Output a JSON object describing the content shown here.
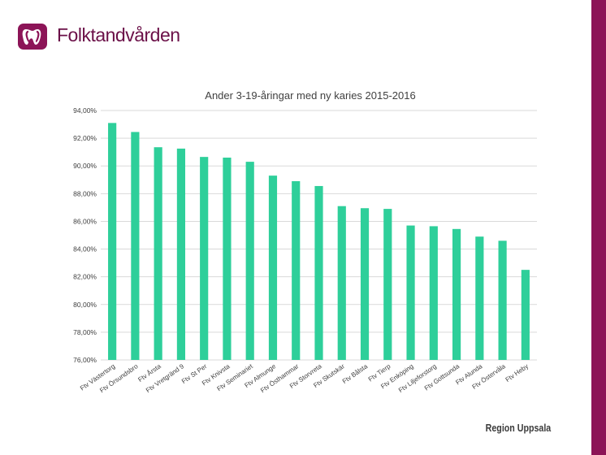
{
  "brand": {
    "name": "Folktandvården",
    "footer": "Region Uppsala",
    "accent_color": "#8c1457",
    "bar_color": "#2ecf9a",
    "logo_icon": "tooth-logo-icon"
  },
  "chart_data": {
    "type": "bar",
    "title": "Ander 3-19-åringar med ny karies 2015-2016",
    "xlabel": "",
    "ylabel": "",
    "ylim": [
      76,
      94
    ],
    "yticks": [
      "76,00%",
      "78,00%",
      "80,00%",
      "82,00%",
      "84,00%",
      "86,00%",
      "88,00%",
      "90,00%",
      "92,00%",
      "94,00%"
    ],
    "grid": true,
    "categories": [
      "Ftv Västertorg",
      "Ftv Örsundsbro",
      "Ftv Årsta",
      "Ftv Vretgränd 9",
      "Ftv St Per",
      "Ftv Knivsta",
      "Ftv Seminariet",
      "Ftv Almunge",
      "Ftv Östhammar",
      "Ftv Storvreta",
      "Ftv Skutskär",
      "Ftv Bålsta",
      "Ftv Tierp",
      "Ftv Enköping",
      "Ftv Liljeforstorg",
      "Ftv Gottsunda",
      "Ftv Alunda",
      "Ftv Östervåla",
      "Ftv Heby"
    ],
    "values": [
      93.1,
      92.45,
      91.35,
      91.25,
      90.65,
      90.6,
      90.3,
      89.3,
      88.9,
      88.55,
      87.1,
      86.95,
      86.9,
      85.7,
      85.65,
      85.45,
      84.9,
      84.6,
      82.5
    ]
  }
}
